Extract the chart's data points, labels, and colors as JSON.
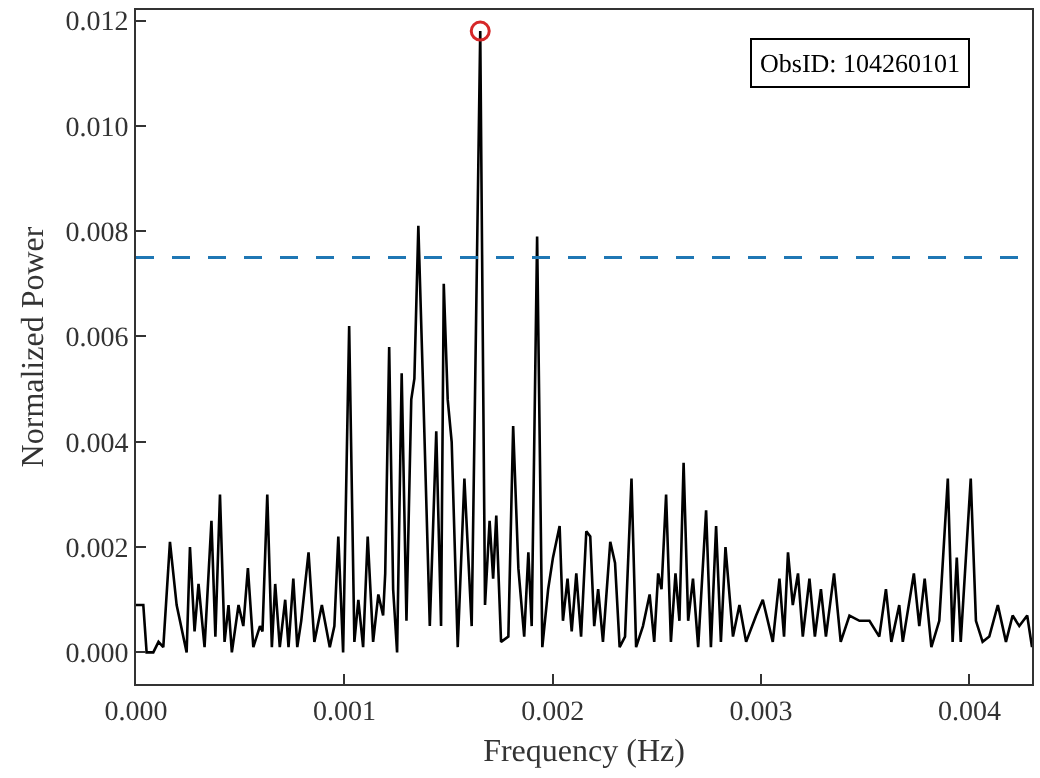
{
  "chart_data": {
    "type": "line",
    "xlabel": "Frequency (Hz)",
    "ylabel": "Normalized Power",
    "annotations": [
      "ObsID: 104260101"
    ],
    "xlim": [
      0,
      0.0043
    ],
    "ylim": [
      -0.0006,
      0.0122
    ],
    "xticks": [
      {
        "value": 0,
        "label": "0.000"
      },
      {
        "value": 0.001,
        "label": "0.001"
      },
      {
        "value": 0.002,
        "label": "0.002"
      },
      {
        "value": 0.003,
        "label": "0.003"
      },
      {
        "value": 0.004,
        "label": "0.004"
      }
    ],
    "yticks": [
      {
        "value": 0,
        "label": "0.000"
      },
      {
        "value": 0.002,
        "label": "0.002"
      },
      {
        "value": 0.004,
        "label": "0.004"
      },
      {
        "value": 0.006,
        "label": "0.006"
      },
      {
        "value": 0.008,
        "label": "0.008"
      },
      {
        "value": 0.01,
        "label": "0.010"
      },
      {
        "value": 0.012,
        "label": "0.012"
      }
    ],
    "grid": false,
    "line_style": "solid",
    "ref_lines": [
      {
        "axis": "y",
        "value": 0.0075,
        "color": "#1f77b4",
        "line_style": "dashed"
      }
    ],
    "series": [
      {
        "marker": "none",
        "color": "#000000",
        "x": [
          0,
          3.5e-05,
          5.1e-05,
          8.3e-05,
          0.000108,
          0.000131,
          0.000163,
          0.000195,
          0.000243,
          0.000259,
          0.000281,
          0.0003,
          0.000329,
          0.000362,
          0.000381,
          0.000403,
          0.000425,
          0.000444,
          0.00046,
          0.000492,
          0.000515,
          0.000537,
          0.000563,
          0.000595,
          0.000607,
          0.00063,
          0.000652,
          0.000668,
          0.00069,
          0.000716,
          0.000732,
          0.000755,
          0.000774,
          0.000793,
          0.000828,
          0.000856,
          0.000892,
          0.00093,
          0.000952,
          0.000971,
          0.000994,
          0.001023,
          0.001048,
          0.001067,
          0.00109,
          0.001112,
          0.001138,
          0.001163,
          0.001186,
          0.001196,
          0.001215,
          0.001234,
          0.001253,
          0.001275,
          0.001298,
          0.001321,
          0.001336,
          0.001355,
          0.001378,
          0.00141,
          0.001441,
          0.001464,
          0.001477,
          0.001496,
          0.001515,
          0.001544,
          0.001576,
          0.001611,
          0.001652,
          0.001675,
          0.001697,
          0.001714,
          0.001729,
          0.001752,
          0.001787,
          0.00181,
          0.001835,
          0.001863,
          0.001883,
          0.001899,
          0.001925,
          0.00195,
          0.001978,
          0.002001,
          0.002033,
          0.002049,
          0.002071,
          0.002091,
          0.002113,
          0.002136,
          0.002161,
          0.00218,
          0.002199,
          0.002218,
          0.002241,
          0.002276,
          0.002299,
          0.002321,
          0.002347,
          0.002378,
          0.0024,
          0.002433,
          0.002465,
          0.002487,
          0.002506,
          0.002522,
          0.002544,
          0.002567,
          0.002589,
          0.002608,
          0.002628,
          0.00265,
          0.002673,
          0.002698,
          0.002736,
          0.002759,
          0.002784,
          0.002807,
          0.002829,
          0.002865,
          0.002896,
          0.002928,
          0.002976,
          0.003008,
          0.003056,
          0.003088,
          0.00311,
          0.003129,
          0.003152,
          0.003177,
          0.0032,
          0.003232,
          0.003258,
          0.003287,
          0.003311,
          0.00335,
          0.003382,
          0.003424,
          0.003472,
          0.00352,
          0.003567,
          0.003599,
          0.003625,
          0.003663,
          0.00368,
          0.003733,
          0.003759,
          0.003785,
          0.003817,
          0.003855,
          0.003896,
          0.003919,
          0.003939,
          0.003958,
          0.004006,
          0.004031,
          0.004063,
          0.004095,
          0.004136,
          0.004175,
          0.004207,
          0.004239,
          0.004277,
          0.0043
        ],
        "values": [
          0.0009,
          0.0009,
          0,
          0,
          0.0002,
          0.0001,
          0.0021,
          0.0009,
          0,
          0.002,
          0.0004,
          0.0013,
          0.0001,
          0.0025,
          0.0003,
          0.003,
          0.0002,
          0.0009,
          0,
          0.0009,
          0.0005,
          0.0016,
          0.0001,
          0.0005,
          0.0004,
          0.003,
          0.0001,
          0.0013,
          0.0001,
          0.001,
          0.0001,
          0.0014,
          0.0001,
          0.0006,
          0.0019,
          0.0002,
          0.0009,
          0.0001,
          0.0005,
          0.0022,
          0,
          0.0062,
          0.0002,
          0.001,
          0.0001,
          0.0022,
          0.0002,
          0.0011,
          0.0007,
          0.0015,
          0.0058,
          0.0012,
          0,
          0.0053,
          0.0006,
          0.0048,
          0.0052,
          0.0081,
          0.005,
          0.0005,
          0.0042,
          0.0005,
          0.007,
          0.0048,
          0.004,
          0.0001,
          0.0033,
          0.0005,
          0.0118,
          0.0009,
          0.0025,
          0.0014,
          0.0026,
          0.0002,
          0.0003,
          0.0043,
          0.0016,
          0.0003,
          0.0019,
          0.0005,
          0.0079,
          0.0001,
          0.0012,
          0.0018,
          0.0024,
          0.0006,
          0.0014,
          0.0004,
          0.0015,
          0.0003,
          0.0023,
          0.0022,
          0.0005,
          0.0012,
          0.0002,
          0.0021,
          0.0017,
          0.0001,
          0.0003,
          0.0033,
          0.0001,
          0.0005,
          0.0011,
          0.0002,
          0.0015,
          0.0012,
          0.003,
          0.0002,
          0.0015,
          0.0006,
          0.0036,
          0.0006,
          0.0014,
          0.0001,
          0.0027,
          0.0001,
          0.0024,
          0.0002,
          0.002,
          0.0003,
          0.0009,
          0.0002,
          0.0007,
          0.001,
          0.0002,
          0.0014,
          0.0003,
          0.0019,
          0.0009,
          0.0015,
          0.0003,
          0.0014,
          0.0003,
          0.0012,
          0.0003,
          0.0015,
          0.0002,
          0.0007,
          0.0006,
          0.0006,
          0.0003,
          0.0012,
          0.0002,
          0.0009,
          0.0002,
          0.0015,
          0.0005,
          0.0014,
          0.0001,
          0.0006,
          0.0033,
          0.0002,
          0.0018,
          0.0002,
          0.0033,
          0.0006,
          0.0002,
          0.0003,
          0.0009,
          0.0002,
          0.0007,
          0.0005,
          0.0007,
          0.0001
        ]
      },
      {
        "type": "scatter",
        "marker": "circle",
        "color": "#d62728",
        "x": [
          0.001652
        ],
        "values": [
          0.0118
        ]
      }
    ]
  }
}
